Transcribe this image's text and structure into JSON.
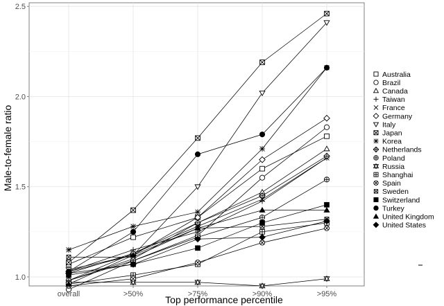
{
  "chart_data": {
    "type": "line",
    "title": "",
    "xlabel": "Top performance percentile",
    "ylabel": "Male-to-female ratio",
    "categories": [
      "overall",
      ">50%",
      ">75%",
      ">90%",
      ">95%"
    ],
    "ylim": [
      0.95,
      2.52
    ],
    "yticks": [
      "1.0",
      "1.5",
      "2.0",
      "2.5"
    ],
    "ytick_values": [
      1.0,
      1.5,
      2.0,
      2.5
    ],
    "grid": true,
    "legend_position": "right",
    "line_color": "#000000",
    "series": [
      {
        "name": "Australia",
        "marker": "square-open",
        "values": [
          1.07,
          1.22,
          1.33,
          1.6,
          1.78
        ]
      },
      {
        "name": "Brazil",
        "marker": "circle-open",
        "values": [
          0.93,
          1.09,
          1.23,
          1.55,
          1.83
        ]
      },
      {
        "name": "Canada",
        "marker": "triangle-up-open",
        "values": [
          0.98,
          1.1,
          1.3,
          1.47,
          1.71
        ]
      },
      {
        "name": "Taiwan",
        "marker": "plus",
        "values": [
          1.03,
          1.15,
          1.25,
          1.42,
          1.66
        ]
      },
      {
        "name": "France",
        "marker": "cross",
        "values": [
          0.98,
          1.13,
          1.28,
          1.43,
          1.66
        ]
      },
      {
        "name": "Germany",
        "marker": "diamond-open",
        "values": [
          1.03,
          1.12,
          1.33,
          1.65,
          1.88
        ]
      },
      {
        "name": "Italy",
        "marker": "triangle-down-open",
        "values": [
          1.04,
          1.12,
          1.5,
          2.02,
          2.41
        ]
      },
      {
        "name": "Japan",
        "marker": "square-x",
        "values": [
          1.08,
          1.37,
          1.77,
          2.19,
          2.46
        ]
      },
      {
        "name": "Korea",
        "marker": "asterisk",
        "values": [
          1.15,
          1.28,
          1.36,
          1.71,
          2.16
        ]
      },
      {
        "name": "Netherlands",
        "marker": "diamond-plus",
        "values": [
          1.02,
          1.13,
          1.3,
          1.45,
          1.67
        ]
      },
      {
        "name": "Poland",
        "marker": "circle-plus",
        "values": [
          0.98,
          1.09,
          1.22,
          1.33,
          1.54
        ]
      },
      {
        "name": "Russia",
        "marker": "hourglass",
        "values": [
          0.97,
          0.97,
          0.97,
          0.95,
          0.99
        ]
      },
      {
        "name": "Shanghai",
        "marker": "square-plus",
        "values": [
          0.96,
          1.01,
          1.07,
          1.25,
          1.3
        ]
      },
      {
        "name": "Spain",
        "marker": "circle-x",
        "values": [
          0.95,
          0.99,
          1.08,
          1.19,
          1.27
        ]
      },
      {
        "name": "Sweden",
        "marker": "square-x-small",
        "values": [
          1.11,
          1.11,
          1.27,
          1.28,
          1.32
        ]
      },
      {
        "name": "Switzerland",
        "marker": "square-filled",
        "values": [
          1.01,
          1.07,
          1.16,
          1.3,
          1.4
        ]
      },
      {
        "name": "Turkey",
        "marker": "circle-filled",
        "values": [
          1.03,
          1.25,
          1.68,
          1.79,
          2.16
        ]
      },
      {
        "name": "United Kingdom",
        "marker": "triangle-up-filled",
        "values": [
          0.96,
          1.12,
          1.27,
          1.37,
          1.37
        ]
      },
      {
        "name": "United States",
        "marker": "diamond-filled",
        "values": [
          1.02,
          1.07,
          1.21,
          1.22,
          1.31
        ]
      }
    ]
  }
}
